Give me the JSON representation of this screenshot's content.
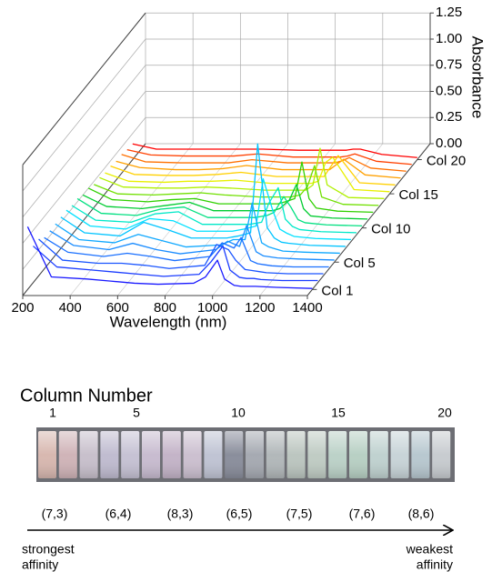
{
  "chart_data": {
    "type": "waterfall",
    "x_label": "Wavelength (nm)",
    "y_label": "Absorbance",
    "x": [
      200,
      300,
      450,
      550,
      650,
      750,
      900,
      950,
      1000,
      1030,
      1070,
      1100,
      1130,
      1160,
      1250,
      1400
    ],
    "xlim": [
      200,
      1400
    ],
    "xticks": [
      200,
      400,
      600,
      800,
      1000,
      1200,
      1400
    ],
    "ylim": [
      0,
      1.25
    ],
    "yticks": [
      {
        "value": 0,
        "label": "0.00"
      },
      {
        "value": 0.25,
        "label": "0.25"
      },
      {
        "value": 0.5,
        "label": "0.50"
      },
      {
        "value": 0.75,
        "label": "0.75"
      },
      {
        "value": 1,
        "label": "1.00"
      },
      {
        "value": 1.25,
        "label": "1.25"
      }
    ],
    "depth_ticks": [
      {
        "value": 1,
        "label": "Col 1"
      },
      {
        "value": 5,
        "label": "Col 5"
      },
      {
        "value": 10,
        "label": "Col 10"
      },
      {
        "value": 15,
        "label": "Col 15"
      },
      {
        "value": 20,
        "label": "Col 20"
      }
    ],
    "grid": true,
    "series": [
      {
        "color": "#1a1aff",
        "values": [
          0.6,
          0.12,
          0.1,
          0.08,
          0.06,
          0.05,
          0.06,
          0.12,
          0.28,
          0.1,
          0.04,
          0.03,
          0.03,
          0.03,
          0.02,
          0.01
        ]
      },
      {
        "color": "#1a3cff",
        "values": [
          0.35,
          0.15,
          0.12,
          0.1,
          0.08,
          0.06,
          0.08,
          0.2,
          0.35,
          0.12,
          0.05,
          0.04,
          0.04,
          0.03,
          0.02,
          0.02
        ]
      },
      {
        "color": "#1a55ff",
        "values": [
          0.35,
          0.15,
          0.12,
          0.12,
          0.1,
          0.07,
          0.1,
          0.3,
          0.25,
          0.15,
          0.06,
          0.05,
          0.04,
          0.03,
          0.02,
          0.02
        ]
      },
      {
        "color": "#1a70ff",
        "values": [
          0.3,
          0.16,
          0.12,
          0.15,
          0.12,
          0.08,
          0.12,
          0.25,
          0.2,
          0.3,
          0.08,
          0.05,
          0.04,
          0.03,
          0.02,
          0.02
        ]
      },
      {
        "color": "#1a8cff",
        "values": [
          0.3,
          0.16,
          0.12,
          0.18,
          0.12,
          0.08,
          0.12,
          0.2,
          0.15,
          0.35,
          0.1,
          0.06,
          0.05,
          0.04,
          0.03,
          0.02
        ]
      },
      {
        "color": "#10a8ff",
        "values": [
          0.3,
          0.15,
          0.12,
          0.2,
          0.14,
          0.08,
          0.1,
          0.15,
          0.15,
          0.5,
          0.12,
          0.08,
          0.06,
          0.04,
          0.03,
          0.02
        ]
      },
      {
        "color": "#00c4ff",
        "values": [
          0.3,
          0.15,
          0.12,
          0.25,
          0.18,
          0.1,
          0.1,
          0.12,
          0.15,
          1.0,
          0.2,
          0.1,
          0.06,
          0.05,
          0.03,
          0.02
        ]
      },
      {
        "color": "#00e0ff",
        "values": [
          0.3,
          0.15,
          0.12,
          0.22,
          0.2,
          0.1,
          0.1,
          0.12,
          0.15,
          0.6,
          0.3,
          0.12,
          0.08,
          0.05,
          0.03,
          0.02
        ]
      },
      {
        "color": "#00e8c8",
        "values": [
          0.28,
          0.14,
          0.12,
          0.2,
          0.22,
          0.1,
          0.1,
          0.1,
          0.12,
          0.3,
          0.45,
          0.15,
          0.08,
          0.05,
          0.03,
          0.02
        ]
      },
      {
        "color": "#00e080",
        "values": [
          0.28,
          0.14,
          0.12,
          0.18,
          0.2,
          0.1,
          0.1,
          0.1,
          0.12,
          0.15,
          0.3,
          0.2,
          0.08,
          0.05,
          0.03,
          0.02
        ]
      },
      {
        "color": "#00cc30",
        "values": [
          0.25,
          0.14,
          0.12,
          0.15,
          0.18,
          0.1,
          0.1,
          0.1,
          0.1,
          0.12,
          0.2,
          0.35,
          0.12,
          0.05,
          0.03,
          0.02
        ]
      },
      {
        "color": "#30d000",
        "values": [
          0.25,
          0.14,
          0.12,
          0.14,
          0.15,
          0.1,
          0.1,
          0.1,
          0.1,
          0.12,
          0.15,
          0.5,
          0.15,
          0.06,
          0.03,
          0.02
        ]
      },
      {
        "color": "#70e000",
        "values": [
          0.22,
          0.13,
          0.12,
          0.13,
          0.14,
          0.12,
          0.1,
          0.1,
          0.1,
          0.1,
          0.12,
          0.2,
          0.4,
          0.1,
          0.03,
          0.02
        ]
      },
      {
        "color": "#b0f000",
        "values": [
          0.22,
          0.13,
          0.12,
          0.12,
          0.13,
          0.12,
          0.1,
          0.1,
          0.1,
          0.1,
          0.1,
          0.15,
          0.5,
          0.15,
          0.03,
          0.02
        ]
      },
      {
        "color": "#e8f000",
        "values": [
          0.2,
          0.12,
          0.11,
          0.12,
          0.12,
          0.13,
          0.1,
          0.1,
          0.1,
          0.1,
          0.1,
          0.12,
          0.3,
          0.35,
          0.04,
          0.02
        ]
      },
      {
        "color": "#ffd000",
        "values": [
          0.2,
          0.12,
          0.11,
          0.11,
          0.12,
          0.14,
          0.1,
          0.1,
          0.1,
          0.1,
          0.1,
          0.1,
          0.2,
          0.3,
          0.04,
          0.02
        ]
      },
      {
        "color": "#ffa000",
        "values": [
          0.18,
          0.12,
          0.1,
          0.1,
          0.11,
          0.14,
          0.1,
          0.1,
          0.1,
          0.1,
          0.1,
          0.1,
          0.15,
          0.2,
          0.05,
          0.02
        ]
      },
      {
        "color": "#ff7000",
        "values": [
          0.18,
          0.11,
          0.1,
          0.1,
          0.1,
          0.13,
          0.1,
          0.1,
          0.1,
          0.1,
          0.1,
          0.1,
          0.12,
          0.15,
          0.05,
          0.02
        ]
      },
      {
        "color": "#ff4000",
        "values": [
          0.16,
          0.11,
          0.1,
          0.1,
          0.1,
          0.12,
          0.09,
          0.09,
          0.09,
          0.09,
          0.09,
          0.09,
          0.1,
          0.12,
          0.05,
          0.02
        ]
      },
      {
        "color": "#ff0000",
        "values": [
          0.15,
          0.1,
          0.1,
          0.1,
          0.1,
          0.1,
          0.09,
          0.09,
          0.09,
          0.09,
          0.09,
          0.09,
          0.1,
          0.1,
          0.05,
          0.02
        ]
      }
    ]
  },
  "photo_panel": {
    "title": "Column Number",
    "column_labels": [
      "1",
      "5",
      "10",
      "15",
      "20"
    ],
    "chiralities": [
      "(7,3)",
      "(6,4)",
      "(8,3)",
      "(6,5)",
      "(7,5)",
      "(7,6)",
      "(8,6)"
    ],
    "left_caption": [
      "strongest",
      "affinity"
    ],
    "right_caption": [
      "weakest",
      "affinity"
    ]
  }
}
